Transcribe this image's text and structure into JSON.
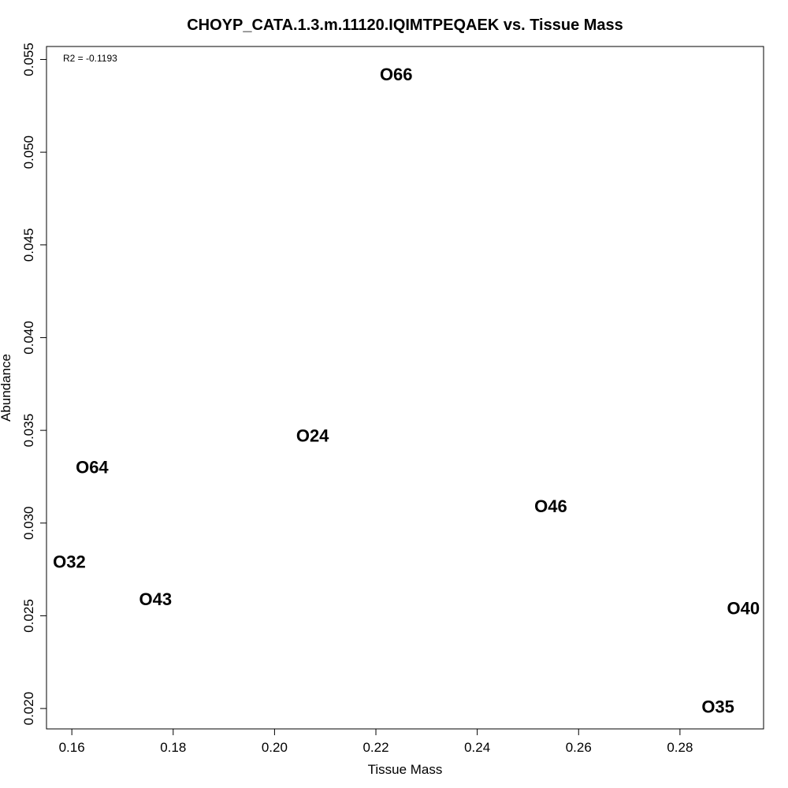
{
  "chart_data": {
    "type": "scatter",
    "title": "CHOYP_CATA.1.3.m.11120.IQIMTPEQAEK vs. Tissue Mass",
    "xlabel": "Tissue Mass",
    "ylabel": "Abundance",
    "xlim": [
      0.155,
      0.2965
    ],
    "ylim": [
      0.0189,
      0.0557
    ],
    "xticks": [
      0.16,
      0.18,
      0.2,
      0.22,
      0.24,
      0.26,
      0.28
    ],
    "xtick_labels": [
      "0.16",
      "0.18",
      "0.20",
      "0.22",
      "0.24",
      "0.26",
      "0.28"
    ],
    "yticks": [
      0.02,
      0.025,
      0.03,
      0.035,
      0.04,
      0.045,
      0.05,
      0.055
    ],
    "ytick_labels": [
      "0.020",
      "0.025",
      "0.030",
      "0.035",
      "0.040",
      "0.045",
      "0.050",
      "0.055"
    ],
    "annotation": "R2 = -0.1193",
    "grid": false,
    "points": [
      {
        "label": "O66",
        "x": 0.224,
        "y": 0.0542
      },
      {
        "label": "O24",
        "x": 0.2075,
        "y": 0.0347
      },
      {
        "label": "O64",
        "x": 0.164,
        "y": 0.033
      },
      {
        "label": "O46",
        "x": 0.2545,
        "y": 0.0309
      },
      {
        "label": "O32",
        "x": 0.1595,
        "y": 0.0279
      },
      {
        "label": "O43",
        "x": 0.1765,
        "y": 0.0259
      },
      {
        "label": "O40",
        "x": 0.2925,
        "y": 0.0254
      },
      {
        "label": "O35",
        "x": 0.2875,
        "y": 0.0201
      }
    ]
  }
}
